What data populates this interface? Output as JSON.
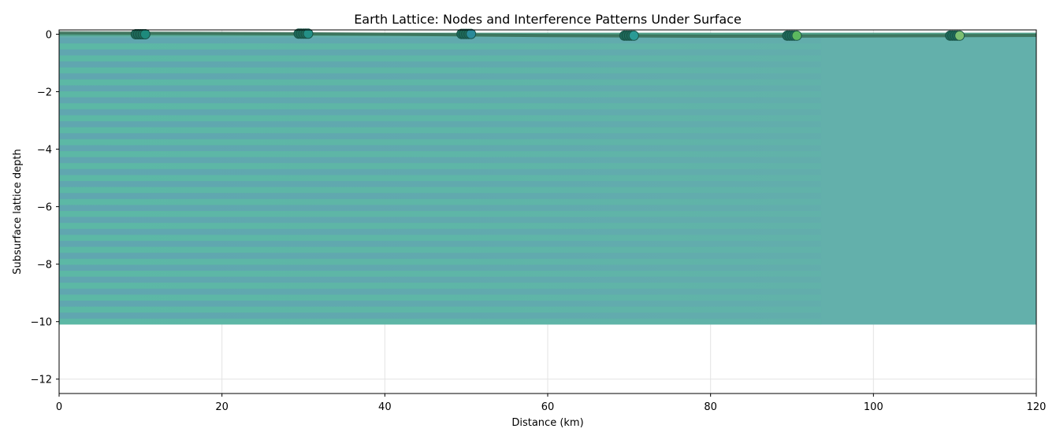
{
  "chart_data": {
    "type": "heatmap",
    "title": "Earth Lattice: Nodes and Interference Patterns Under Surface",
    "xlabel": "Distance (km)",
    "ylabel": "Subsurface lattice depth",
    "xlim": [
      0,
      120
    ],
    "ylim": [
      -12.5,
      0.15
    ],
    "x_ticks": [
      0,
      20,
      40,
      60,
      80,
      100,
      120
    ],
    "x_tick_labels": [
      "0",
      "20",
      "40",
      "60",
      "80",
      "100",
      "120"
    ],
    "y_ticks": [
      0,
      -2,
      -4,
      -6,
      -8,
      -10,
      -12
    ],
    "y_tick_labels": [
      "0",
      "−2",
      "−4",
      "−6",
      "−8",
      "−10",
      "−12"
    ],
    "grid": true,
    "field": {
      "x_range": [
        0,
        120
      ],
      "depth_range": [
        -10.1,
        0.05
      ],
      "base_color": "#63b0ab"
    },
    "surface_line": {
      "x": [
        0,
        20,
        40,
        60,
        80,
        100,
        120
      ],
      "y": [
        0.05,
        0.03,
        0.0,
        -0.05,
        -0.07,
        -0.06,
        -0.04
      ],
      "color": "#3a6e57"
    },
    "nodes": [
      {
        "x": 10,
        "y": 0.0,
        "color": "#1e8a7c"
      },
      {
        "x": 30,
        "y": 0.02,
        "color": "#238f86"
      },
      {
        "x": 50,
        "y": 0.01,
        "color": "#2a8a9a"
      },
      {
        "x": 70,
        "y": -0.05,
        "color": "#2a9a95"
      },
      {
        "x": 90,
        "y": -0.05,
        "color": "#5cb85f"
      },
      {
        "x": 110,
        "y": -0.05,
        "color": "#7cbf72"
      }
    ]
  }
}
